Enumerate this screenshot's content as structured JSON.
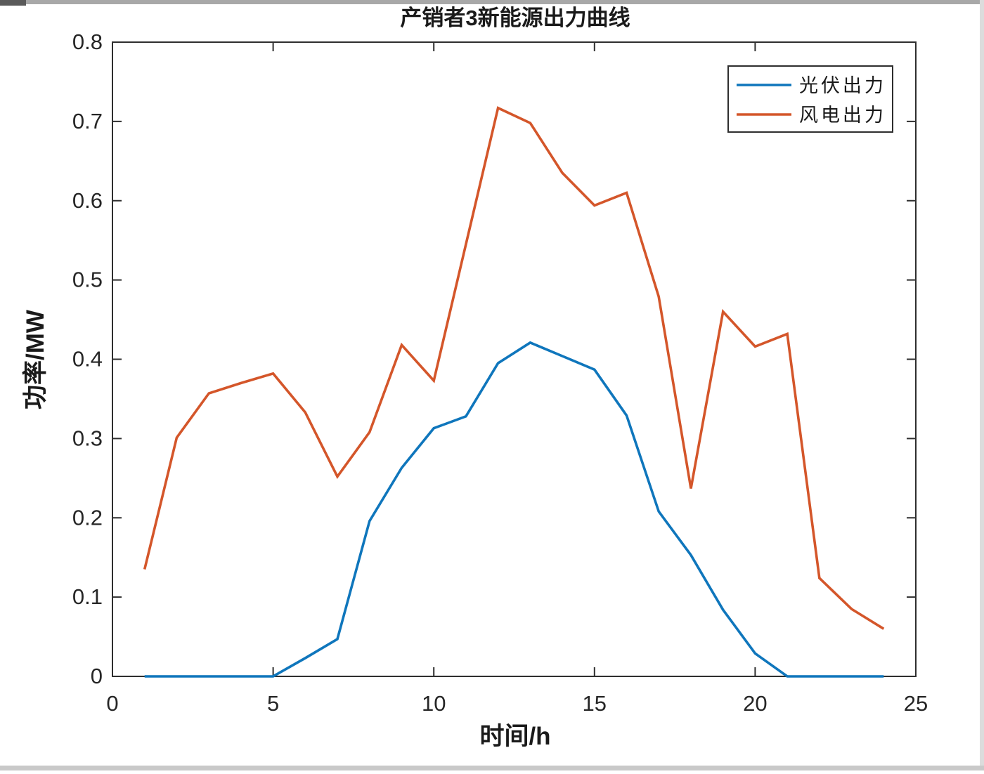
{
  "chart_data": {
    "type": "line",
    "title": "产销者3新能源出力曲线",
    "xlabel": "时间/h",
    "ylabel": "功率/MW",
    "xlim": [
      0,
      25
    ],
    "ylim": [
      0,
      0.8
    ],
    "xticks": [
      0,
      5,
      10,
      15,
      20,
      25
    ],
    "yticks": [
      0,
      0.1,
      0.2,
      0.3,
      0.4,
      0.5,
      0.6,
      0.7,
      0.8
    ],
    "grid": false,
    "legend_position": "top-right",
    "x": [
      1,
      2,
      3,
      4,
      5,
      6,
      7,
      8,
      9,
      10,
      11,
      12,
      13,
      14,
      15,
      16,
      17,
      18,
      19,
      20,
      21,
      22,
      23,
      24
    ],
    "series": [
      {
        "name": "光伏出力",
        "color": "#0F76BC",
        "values": [
          0,
          0,
          0,
          0,
          0,
          0.023,
          0.047,
          0.196,
          0.263,
          0.313,
          0.328,
          0.395,
          0.421,
          0.404,
          0.387,
          0.329,
          0.208,
          0.153,
          0.084,
          0.029,
          0,
          0,
          0,
          0
        ]
      },
      {
        "name": "风电出力",
        "color": "#D4562A",
        "values": [
          0.135,
          0.301,
          0.357,
          0.37,
          0.382,
          0.333,
          0.252,
          0.308,
          0.418,
          0.373,
          0.545,
          0.717,
          0.698,
          0.635,
          0.594,
          0.61,
          0.479,
          0.237,
          0.46,
          0.416,
          0.432,
          0.124,
          0.085,
          0.06
        ]
      }
    ],
    "axis_color": "#2e2e2e",
    "tick_label_color": "#262626"
  }
}
